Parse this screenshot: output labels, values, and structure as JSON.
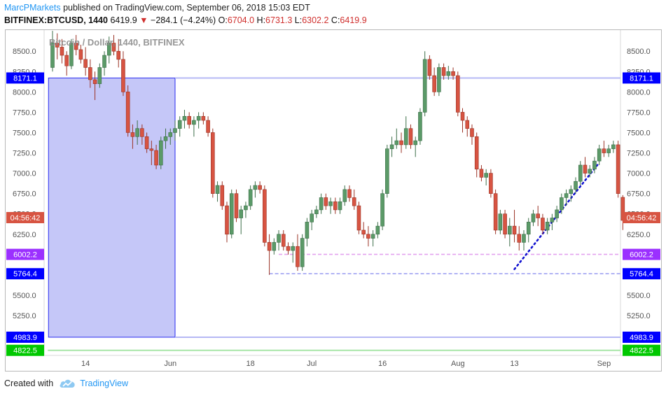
{
  "header": {
    "author": "MarcPMarkets",
    "published": "published on TradingView.com, September 06, 2018 15:03 EDT"
  },
  "ohlc": {
    "symbol": "BITFINEX:BTCUSD, 1440",
    "last": "6419.9",
    "change": "−284.1 (−4.24%)",
    "o_label": "O:",
    "o": "6704.0",
    "h_label": "H:",
    "h": "6731.3",
    "l_label": "L:",
    "l": "6302.2",
    "c_label": "C:",
    "c": "6419.9",
    "down_color": "#d0302e"
  },
  "footer": {
    "created_with": "Created with",
    "brand": "TradingView"
  },
  "chart_data": {
    "type": "candlestick",
    "watermark": "Bitcoin / Dollar, 1440, BITFINEX",
    "ylim": [
      4760,
      8760
    ],
    "y_ticks": [
      8500,
      8250,
      8000,
      7750,
      7500,
      7250,
      7000,
      6750,
      6500,
      6250,
      5500,
      5250,
      5000
    ],
    "x_ticks": [
      {
        "label": "14",
        "index": 7
      },
      {
        "label": "Jun",
        "index": 25
      },
      {
        "label": "18",
        "index": 42
      },
      {
        "label": "Jul",
        "index": 55
      },
      {
        "label": "16",
        "index": 70
      },
      {
        "label": "Aug",
        "index": 86
      },
      {
        "label": "13",
        "index": 98
      },
      {
        "label": "Sep",
        "index": 117
      }
    ],
    "colors": {
      "up": "#5b9a68",
      "down": "#d75442",
      "wick_up": "#3d6f49",
      "wick_down": "#9b3326"
    },
    "candles": [
      [
        8300,
        8750,
        8250,
        8600
      ],
      [
        8600,
        8720,
        8400,
        8550
      ],
      [
        8550,
        8650,
        8350,
        8450
      ],
      [
        8450,
        8500,
        8200,
        8320
      ],
      [
        8320,
        8650,
        8280,
        8600
      ],
      [
        8600,
        8700,
        8450,
        8520
      ],
      [
        8520,
        8580,
        8350,
        8400
      ],
      [
        8400,
        8550,
        8200,
        8300
      ],
      [
        8300,
        8400,
        8050,
        8150
      ],
      [
        8150,
        8250,
        7900,
        8100
      ],
      [
        8100,
        8350,
        8050,
        8300
      ],
      [
        8300,
        8500,
        8200,
        8450
      ],
      [
        8450,
        8680,
        8350,
        8600
      ],
      [
        8600,
        8700,
        8450,
        8500
      ],
      [
        8500,
        8650,
        8300,
        8400
      ],
      [
        8400,
        8500,
        7950,
        8000
      ],
      [
        8000,
        8080,
        7450,
        7500
      ],
      [
        7500,
        7600,
        7300,
        7450
      ],
      [
        7450,
        7650,
        7350,
        7550
      ],
      [
        7550,
        7600,
        7350,
        7450
      ],
      [
        7450,
        7500,
        7250,
        7300
      ],
      [
        7300,
        7400,
        7100,
        7280
      ],
      [
        7280,
        7350,
        7050,
        7100
      ],
      [
        7100,
        7450,
        7050,
        7400
      ],
      [
        7400,
        7550,
        7300,
        7450
      ],
      [
        7450,
        7550,
        7350,
        7500
      ],
      [
        7500,
        7650,
        7400,
        7550
      ],
      [
        7550,
        7700,
        7450,
        7650
      ],
      [
        7650,
        7780,
        7550,
        7700
      ],
      [
        7700,
        7750,
        7550,
        7600
      ],
      [
        7600,
        7700,
        7450,
        7650
      ],
      [
        7650,
        7750,
        7550,
        7700
      ],
      [
        7700,
        7750,
        7600,
        7650
      ],
      [
        7650,
        7700,
        7450,
        7500
      ],
      [
        7500,
        7550,
        6700,
        6750
      ],
      [
        6750,
        6900,
        6650,
        6850
      ],
      [
        6850,
        6900,
        6550,
        6600
      ],
      [
        6600,
        6650,
        6150,
        6250
      ],
      [
        6250,
        6800,
        6200,
        6750
      ],
      [
        6750,
        6800,
        6400,
        6450
      ],
      [
        6450,
        6600,
        6250,
        6550
      ],
      [
        6550,
        6650,
        6450,
        6600
      ],
      [
        6600,
        6850,
        6550,
        6800
      ],
      [
        6800,
        6900,
        6700,
        6850
      ],
      [
        6850,
        6900,
        6750,
        6800
      ],
      [
        6800,
        6850,
        6100,
        6150
      ],
      [
        6150,
        6250,
        5750,
        6050
      ],
      [
        6050,
        6200,
        6000,
        6150
      ],
      [
        6150,
        6300,
        6050,
        6250
      ],
      [
        6250,
        6300,
        6050,
        6100
      ],
      [
        6100,
        6150,
        6000,
        6050
      ],
      [
        6050,
        6150,
        5900,
        6100
      ],
      [
        6100,
        6250,
        5800,
        5850
      ],
      [
        5850,
        6250,
        5800,
        6200
      ],
      [
        6200,
        6450,
        6100,
        6400
      ],
      [
        6400,
        6550,
        6300,
        6500
      ],
      [
        6500,
        6600,
        6450,
        6550
      ],
      [
        6550,
        6750,
        6500,
        6700
      ],
      [
        6700,
        6750,
        6550,
        6600
      ],
      [
        6600,
        6700,
        6500,
        6650
      ],
      [
        6650,
        6700,
        6500,
        6550
      ],
      [
        6550,
        6700,
        6500,
        6650
      ],
      [
        6650,
        6850,
        6600,
        6800
      ],
      [
        6800,
        6850,
        6650,
        6700
      ],
      [
        6700,
        6800,
        6550,
        6600
      ],
      [
        6600,
        6650,
        6250,
        6300
      ],
      [
        6300,
        6400,
        6200,
        6250
      ],
      [
        6250,
        6350,
        6100,
        6200
      ],
      [
        6200,
        6300,
        6100,
        6250
      ],
      [
        6250,
        6400,
        6200,
        6350
      ],
      [
        6350,
        6800,
        6300,
        6750
      ],
      [
        6750,
        7350,
        6700,
        7300
      ],
      [
        7300,
        7450,
        7200,
        7350
      ],
      [
        7350,
        7550,
        7300,
        7400
      ],
      [
        7400,
        7500,
        7250,
        7350
      ],
      [
        7350,
        7700,
        7300,
        7550
      ],
      [
        7550,
        7600,
        7300,
        7350
      ],
      [
        7350,
        7450,
        7200,
        7400
      ],
      [
        7400,
        7800,
        7350,
        7750
      ],
      [
        7750,
        8500,
        7700,
        8400
      ],
      [
        8400,
        8450,
        8150,
        8200
      ],
      [
        8200,
        8300,
        7950,
        8000
      ],
      [
        8000,
        8350,
        7950,
        8300
      ],
      [
        8300,
        8350,
        8150,
        8200
      ],
      [
        8200,
        8320,
        8150,
        8250
      ],
      [
        8250,
        8300,
        8150,
        8200
      ],
      [
        8200,
        8250,
        7700,
        7750
      ],
      [
        7750,
        7800,
        7500,
        7650
      ],
      [
        7650,
        7700,
        7450,
        7550
      ],
      [
        7550,
        7600,
        7350,
        7450
      ],
      [
        7450,
        7500,
        6950,
        7050
      ],
      [
        7050,
        7100,
        6900,
        6950
      ],
      [
        6950,
        7050,
        6850,
        7000
      ],
      [
        7000,
        7050,
        6700,
        6750
      ],
      [
        6750,
        6800,
        6250,
        6300
      ],
      [
        6300,
        6550,
        6250,
        6500
      ],
      [
        6500,
        6550,
        6200,
        6250
      ],
      [
        6250,
        6450,
        6100,
        6350
      ],
      [
        6350,
        6550,
        6150,
        6250
      ],
      [
        6250,
        6350,
        6050,
        6150
      ],
      [
        6150,
        6300,
        6050,
        6250
      ],
      [
        6250,
        6450,
        6150,
        6400
      ],
      [
        6400,
        6550,
        6350,
        6500
      ],
      [
        6500,
        6600,
        6350,
        6450
      ],
      [
        6450,
        6500,
        6250,
        6300
      ],
      [
        6300,
        6450,
        6250,
        6400
      ],
      [
        6400,
        6500,
        6300,
        6450
      ],
      [
        6450,
        6600,
        6400,
        6550
      ],
      [
        6550,
        6750,
        6500,
        6700
      ],
      [
        6700,
        6800,
        6600,
        6750
      ],
      [
        6750,
        6850,
        6650,
        6800
      ],
      [
        6800,
        6950,
        6750,
        6900
      ],
      [
        6900,
        7150,
        6850,
        7100
      ],
      [
        7100,
        7200,
        6950,
        7000
      ],
      [
        7000,
        7100,
        6950,
        7050
      ],
      [
        7050,
        7200,
        7000,
        7150
      ],
      [
        7150,
        7350,
        7100,
        7300
      ],
      [
        7300,
        7400,
        7200,
        7250
      ],
      [
        7250,
        7350,
        7200,
        7300
      ],
      [
        7300,
        7400,
        7250,
        7350
      ],
      [
        7350,
        7400,
        6700,
        6750
      ],
      [
        6704,
        6731,
        6302,
        6420
      ]
    ],
    "rectangle": {
      "from_index": -1,
      "to_index": 26,
      "top": 8171.1,
      "bottom": 4983.9,
      "fill": "#bfc1f7",
      "stroke": "#2a2cf0"
    },
    "hlines": [
      {
        "price": 8171.1,
        "from_index": 26,
        "label": "8171.1",
        "style": "solid",
        "color": "#b5b8f5",
        "label_bg": "#0000ff"
      },
      {
        "price": 4983.9,
        "from_index": 26,
        "label": "4983.9",
        "style": "solid",
        "color": "#b5b8f5",
        "label_bg": "#0000ff"
      },
      {
        "price": 4822.5,
        "from_index": -1,
        "label": "4822.5",
        "style": "solid",
        "color": "#a8e6a8",
        "label_bg": "#00c800"
      },
      {
        "price": 6002.2,
        "from_index": 48,
        "label": "6002.2",
        "style": "dashed",
        "color": "#e3a3ef",
        "label_bg": "#9b30ff"
      },
      {
        "price": 5764.4,
        "from_index": 46,
        "label": "5764.4",
        "style": "dashed",
        "color": "#9a9cf2",
        "label_bg": "#0000ff"
      }
    ],
    "trendline": {
      "from": {
        "index": 98,
        "price": 5820
      },
      "to": {
        "index": 116,
        "price": 7130
      },
      "color": "#1010d0",
      "style": "dotted"
    },
    "countdown": {
      "label": "04:56:42",
      "price": 6420,
      "bg": "#d75442"
    },
    "grid": false
  }
}
